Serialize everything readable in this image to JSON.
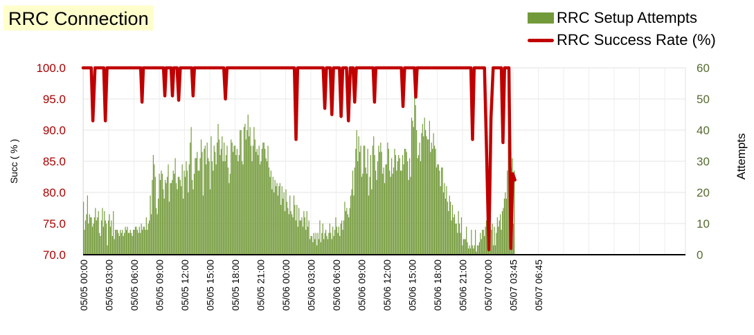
{
  "chart_data": {
    "type": "bar+line",
    "title": "RRC Connection",
    "legend": {
      "position": "top-right",
      "entries": [
        {
          "label": "RRC Setup Attempts",
          "kind": "bar"
        },
        {
          "label": "RRC Success Rate (%)",
          "kind": "line"
        }
      ]
    },
    "y_left": {
      "label": "Succ ( % )",
      "ticks": [
        "100.0",
        "95.0",
        "90.0",
        "85.0",
        "80.0",
        "75.0",
        "70.0"
      ],
      "range": [
        70,
        100
      ],
      "color": "#aa0000"
    },
    "y_right": {
      "label": "Attempts",
      "ticks": [
        "60",
        "50",
        "40",
        "30",
        "20",
        "10",
        "0"
      ],
      "range": [
        0,
        60
      ],
      "color": "#556b2f"
    },
    "x_ticks": [
      "05/05 00:00",
      "05/05 03:00",
      "05/05 06:00",
      "05/05 09:00",
      "05/05 12:00",
      "05/05 15:00",
      "05/05 18:00",
      "05/05 21:00",
      "05/06 00:00",
      "05/06 03:00",
      "05/06 06:00",
      "05/06 09:00",
      "05/06 12:00",
      "05/06 15:00",
      "05/06 18:00",
      "05/06 21:00",
      "05/07 00:00",
      "05/07 03:45",
      "05/07 06:45"
    ],
    "x_range_hours": [
      0,
      79.5
    ],
    "bar_interval_hours": 0.25,
    "grid": true,
    "colors": {
      "bars": "#739a3a",
      "line": "#c00000",
      "left_axis_text": "#aa0000",
      "right_axis_text": "#556b2f"
    },
    "series": [
      {
        "name": "RRC Setup Attempts",
        "type": "bar",
        "values": [
          17,
          8,
          11,
          13,
          19,
          10,
          13,
          12,
          12,
          9,
          10,
          12,
          15,
          11,
          12,
          14,
          7,
          6,
          11,
          15,
          9,
          14,
          11,
          10,
          3,
          11,
          13,
          9,
          11,
          6,
          14,
          5,
          8,
          8,
          8,
          7,
          6,
          8,
          7,
          8,
          6,
          7,
          9,
          8,
          9,
          7,
          7,
          8,
          7,
          6,
          8,
          8,
          9,
          9,
          8,
          7,
          9,
          7,
          10,
          8,
          9,
          9,
          8,
          12,
          8,
          10,
          11,
          19,
          13,
          24,
          32,
          29,
          25,
          15,
          13,
          18,
          26,
          24,
          27,
          26,
          21,
          18,
          24,
          23,
          25,
          29,
          17,
          23,
          23,
          24,
          27,
          26,
          31,
          23,
          21,
          25,
          25,
          24,
          22,
          29,
          18,
          27,
          25,
          30,
          27,
          20,
          29,
          36,
          41,
          24,
          21,
          26,
          31,
          31,
          33,
          27,
          27,
          31,
          37,
          33,
          19,
          34,
          35,
          29,
          36,
          31,
          30,
          21,
          38,
          30,
          27,
          35,
          33,
          29,
          36,
          42,
          37,
          32,
          34,
          38,
          30,
          36,
          30,
          32,
          35,
          28,
          23,
          26,
          37,
          36,
          33,
          35,
          35,
          32,
          34,
          30,
          32,
          40,
          40,
          30,
          29,
          41,
          42,
          37,
          40,
          45,
          38,
          41,
          35,
          30,
          35,
          41,
          37,
          33,
          34,
          32,
          35,
          29,
          30,
          34,
          36,
          36,
          34,
          31,
          30,
          35,
          28,
          25,
          27,
          21,
          25,
          20,
          24,
          22,
          23,
          19,
          22,
          23,
          16,
          22,
          18,
          20,
          14,
          21,
          17,
          15,
          13,
          19,
          14,
          13,
          12,
          19,
          16,
          11,
          16,
          9,
          15,
          11,
          11,
          12,
          9,
          14,
          12,
          8,
          14,
          9,
          11,
          5,
          6,
          6,
          4,
          7,
          5,
          7,
          3,
          7,
          5,
          11,
          4,
          7,
          10,
          5,
          7,
          8,
          6,
          5,
          7,
          10,
          7,
          5,
          9,
          6,
          8,
          12,
          9,
          7,
          9,
          6,
          10,
          11,
          8,
          11,
          17,
          14,
          15,
          13,
          12,
          15,
          19,
          21,
          27,
          19,
          28,
          34,
          40,
          30,
          38,
          33,
          35,
          25,
          26,
          35,
          35,
          28,
          26,
          34,
          19,
          25,
          32,
          21,
          35,
          38,
          32,
          27,
          24,
          30,
          35,
          33,
          36,
          33,
          26,
          28,
          23,
          29,
          29,
          36,
          34,
          27,
          25,
          31,
          26,
          28,
          34,
          32,
          27,
          30,
          32,
          31,
          27,
          27,
          32,
          29,
          34,
          34,
          33,
          30,
          24,
          31,
          25,
          44,
          43,
          41,
          54,
          48,
          40,
          31,
          32,
          36,
          30,
          39,
          42,
          38,
          44,
          40,
          38,
          37,
          37,
          43,
          33,
          36,
          34,
          39,
          35,
          34,
          28,
          29,
          29,
          27,
          22,
          28,
          28,
          20,
          23,
          18,
          22,
          17,
          14,
          19,
          17,
          11,
          16,
          12,
          13,
          10,
          10,
          7,
          14,
          10,
          7,
          12,
          3,
          5,
          5,
          5,
          9,
          4,
          2,
          3,
          2,
          8,
          3,
          2,
          3,
          8,
          1,
          3,
          3,
          4,
          7,
          5,
          8,
          8,
          6,
          9,
          11,
          7,
          6,
          7,
          9,
          8,
          10,
          3,
          9,
          3,
          7,
          12,
          9,
          11,
          13,
          8,
          14,
          15,
          18,
          20,
          18,
          27,
          37,
          24,
          23,
          28,
          31,
          10,
          27
        ]
      },
      {
        "name": "RRC Success Rate (%)",
        "type": "line",
        "points": [
          [
            0,
            100
          ],
          [
            1.5,
            100
          ],
          [
            1.8,
            91.5
          ],
          [
            2.2,
            100
          ],
          [
            3.8,
            100
          ],
          [
            4.1,
            91.5
          ],
          [
            4.4,
            100
          ],
          [
            10.6,
            100
          ],
          [
            10.85,
            94.5
          ],
          [
            11.1,
            100
          ],
          [
            14.8,
            100
          ],
          [
            15.05,
            95.5
          ],
          [
            15.3,
            100
          ],
          [
            16.2,
            100
          ],
          [
            16.45,
            95.5
          ],
          [
            16.7,
            100
          ],
          [
            17.3,
            100
          ],
          [
            17.6,
            94.8
          ],
          [
            17.9,
            100
          ],
          [
            20.0,
            100
          ],
          [
            20.25,
            95.5
          ],
          [
            20.5,
            100
          ],
          [
            25.9,
            100
          ],
          [
            26.2,
            95
          ],
          [
            26.5,
            100
          ],
          [
            38.9,
            100
          ],
          [
            39.2,
            88.5
          ],
          [
            39.5,
            100
          ],
          [
            44.2,
            100
          ],
          [
            44.5,
            93.5
          ],
          [
            44.8,
            100
          ],
          [
            45.5,
            100
          ],
          [
            45.8,
            92.5
          ],
          [
            46.1,
            100
          ],
          [
            47.2,
            100
          ],
          [
            47.5,
            92.2
          ],
          [
            47.8,
            100
          ],
          [
            48.5,
            100
          ],
          [
            48.85,
            91.5
          ],
          [
            49.2,
            100
          ],
          [
            49.7,
            100
          ],
          [
            50.0,
            94.5
          ],
          [
            50.3,
            100
          ],
          [
            53.4,
            100
          ],
          [
            53.65,
            94.5
          ],
          [
            53.9,
            100
          ],
          [
            58.6,
            100
          ],
          [
            58.9,
            93.8
          ],
          [
            59.2,
            100
          ],
          [
            61.0,
            100
          ],
          [
            61.25,
            95.3
          ],
          [
            61.5,
            100
          ],
          [
            71.4,
            100
          ],
          [
            71.7,
            88.5
          ],
          [
            72.0,
            100
          ],
          [
            73.9,
            100
          ],
          [
            74.3,
            86
          ],
          [
            74.7,
            70.8
          ],
          [
            75.1,
            92
          ],
          [
            75.5,
            100
          ],
          [
            77.0,
            100
          ],
          [
            77.3,
            88
          ],
          [
            77.6,
            100
          ],
          [
            78.4,
            100
          ],
          [
            78.75,
            71
          ],
          [
            79.1,
            83
          ],
          [
            79.5,
            82
          ]
        ]
      }
    ]
  }
}
